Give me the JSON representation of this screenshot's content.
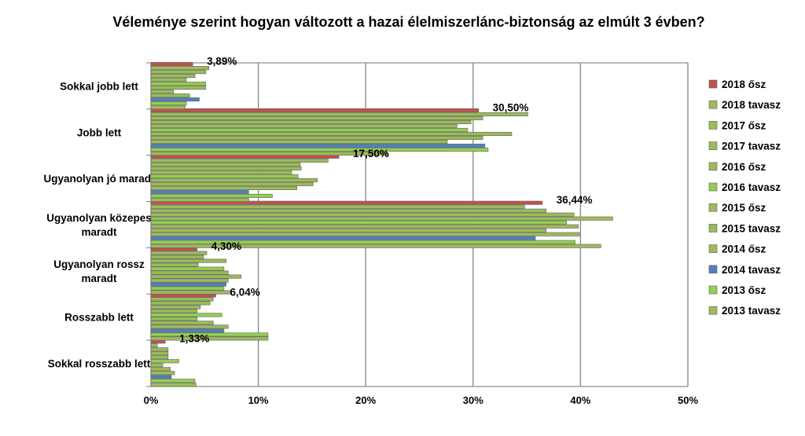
{
  "chart_data": {
    "type": "bar",
    "orientation": "horizontal",
    "title": "Véleménye szerint hogyan változott a hazai élelmiszerlánc-biztonság az elmúlt 3 évben?",
    "categories": [
      [
        "Sokkal jobb lett"
      ],
      [
        "Jobb lett"
      ],
      [
        "Ugyanolyan jó maradt"
      ],
      [
        "Ugyanolyan közepes",
        "maradt"
      ],
      [
        "Ugyanolyan rossz",
        "maradt"
      ],
      [
        "Rosszabb lett"
      ],
      [
        "Sokkal rosszabb lett"
      ]
    ],
    "xlim": [
      0,
      50
    ],
    "xticks": [
      0,
      10,
      20,
      30,
      40,
      50
    ],
    "xtick_labels": [
      "0%",
      "10%",
      "20%",
      "30%",
      "40%",
      "50%"
    ],
    "grid": true,
    "legend_position": "right",
    "series": [
      {
        "name": "2018 ősz",
        "color": "#c0504d",
        "values": [
          3.89,
          30.5,
          17.5,
          36.44,
          4.3,
          6.04,
          1.33
        ]
      },
      {
        "name": "2018 tavasz",
        "color": "#9bbb59",
        "values": [
          5.4,
          35.1,
          16.5,
          34.8,
          5.2,
          5.8,
          0.6
        ]
      },
      {
        "name": "2017 ősz",
        "color": "#9bbb59",
        "values": [
          5.1,
          30.9,
          13.9,
          36.8,
          4.9,
          5.5,
          1.6
        ]
      },
      {
        "name": "2017 tavasz",
        "color": "#9bbb59",
        "values": [
          4.1,
          29.8,
          14.0,
          39.4,
          7.0,
          4.6,
          1.6
        ]
      },
      {
        "name": "2016 ősz",
        "color": "#9bbb59",
        "values": [
          3.3,
          28.5,
          13.1,
          43.0,
          4.4,
          4.3,
          1.6
        ]
      },
      {
        "name": "2016 tavasz",
        "color": "#92d050",
        "values": [
          5.1,
          29.5,
          13.7,
          38.7,
          6.8,
          6.6,
          2.6
        ]
      },
      {
        "name": "2015 ősz",
        "color": "#9bbb59",
        "values": [
          5.1,
          33.6,
          15.5,
          39.8,
          7.2,
          4.3,
          1.1
        ]
      },
      {
        "name": "2015 tavasz",
        "color": "#9bbb59",
        "values": [
          2.1,
          30.9,
          15.1,
          36.8,
          8.4,
          5.8,
          1.8
        ]
      },
      {
        "name": "2014 ősz",
        "color": "#9bbb59",
        "values": [
          3.6,
          27.6,
          13.6,
          39.9,
          7.2,
          7.2,
          2.2
        ]
      },
      {
        "name": "2014 tavasz",
        "color": "#4f81bd",
        "values": [
          4.5,
          31.1,
          9.1,
          35.8,
          7.0,
          6.8,
          1.9
        ]
      },
      {
        "name": "2013 ősz",
        "color": "#92d050",
        "values": [
          3.3,
          31.4,
          11.3,
          39.5,
          6.8,
          10.9,
          4.1
        ]
      },
      {
        "name": "2013 tavasz",
        "color": "#9bbb59",
        "values": [
          3.2,
          22.0,
          9.1,
          41.9,
          7.5,
          10.9,
          4.2
        ]
      }
    ],
    "data_labels": [
      "3,89%",
      "30,50%",
      "17,50%",
      "36,44%",
      "4,30%",
      "6,04%",
      "1,33%"
    ]
  }
}
